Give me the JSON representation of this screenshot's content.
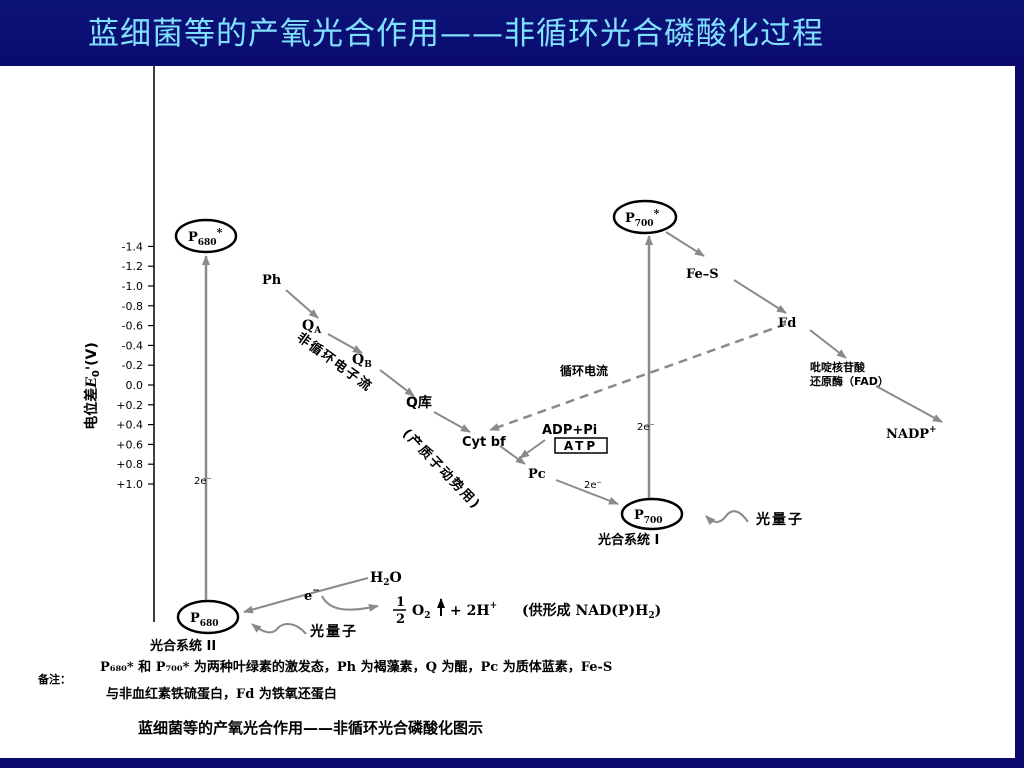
{
  "slide": {
    "title": "蓝细菌等的产氧光合作用——非循环光合磷酸化过程",
    "caption": "蓝细菌等的产氧光合作用——非循环光合磷酸化图示"
  },
  "axis": {
    "ylabel_prefix": "电位差",
    "ylabel_var": "E",
    "ylabel_sub": "0",
    "ylabel_suffix": "'(V)",
    "ticks": [
      "-1.4",
      "-1.2",
      "-1.0",
      "-0.8",
      "-0.6",
      "-0.4",
      "-0.2",
      "0.0",
      "+0.2",
      "+0.4",
      "+0.6",
      "+0.8",
      "+1.0"
    ],
    "tick_values": [
      -1.4,
      -1.2,
      -1.0,
      -0.8,
      -0.6,
      -0.4,
      -0.2,
      0.0,
      0.2,
      0.4,
      0.6,
      0.8,
      1.0
    ]
  },
  "diagram": {
    "p680_star": "P",
    "p680_star_sub": "680",
    "p680_star_sup": "*",
    "p680": "P",
    "p680_sub": "680",
    "p700_star": "P",
    "p700_star_sub": "700",
    "p700_star_sup": "*",
    "p700": "P",
    "p700_sub": "700",
    "ph": "Ph",
    "qa": "Q",
    "qa_sub": "A",
    "qb": "Q",
    "qb_sub": "B",
    "qpool": "Q库",
    "cytbf": "Cyt bf",
    "adp": "ADP+Pi",
    "atp": "ATP",
    "pc": "Pc",
    "fes": "Fe–S",
    "fd": "Fd",
    "fad_line1": "吡啶核苷酸",
    "fad_line2": "还原酶（FAD）",
    "nadp": "NADP",
    "nadp_sup": "+",
    "cyclic_flow": "循环电流",
    "noncyclic_flow": "非循环电子流",
    "proton_motive": "(产质子动势用)",
    "e2_left": "2e⁻",
    "e2_mid": "2e⁻",
    "e2_right": "2e⁻",
    "photon_1": "光量子",
    "photon_2": "光量子",
    "ps1": "光合系统 I",
    "ps2": "光合系统 II",
    "e_minus": "e",
    "e_minus_sup": "−",
    "h2o": "H",
    "h2o_sub": "2",
    "h2o_tail": "O",
    "frac_num": "1",
    "frac_den": "2",
    "o2": "O",
    "o2_sub": "2",
    "h_plus": "+ 2H",
    "h_plus_sup": "+",
    "nadph_text": "(供形成 NAD(P)H",
    "nadph_sub": "2",
    "nadph_close": ")"
  },
  "note": {
    "label": "备注：",
    "line1": "P₆₈₀* 和 P₇₀₀* 为两种叶绿素的激发态，Ph 为褐藻素，Q 为醌，Pc 为质体蓝素，Fe-S",
    "line2": "与非血红素铁硫蛋白，Fd 为铁氧还蛋白"
  }
}
